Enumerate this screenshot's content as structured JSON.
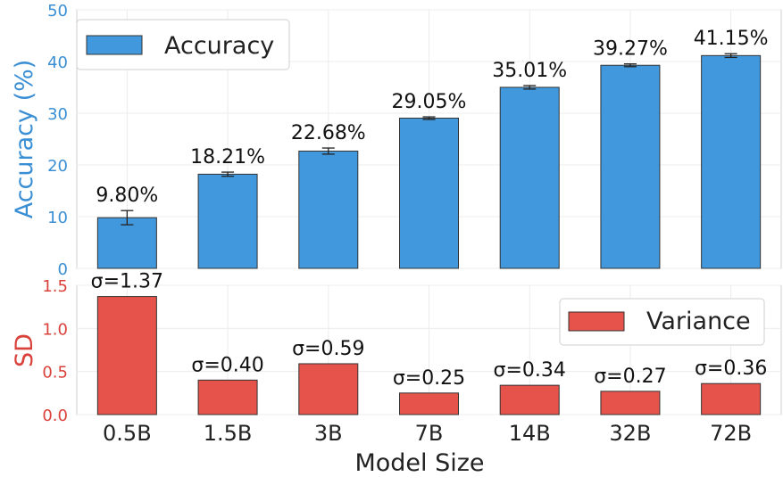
{
  "chart_data": [
    {
      "type": "bar",
      "ylabel": "Accuracy (%)",
      "xlabel": "",
      "ylim": [
        0,
        50
      ],
      "yticks": [
        "0",
        "10",
        "20",
        "30",
        "40",
        "50"
      ],
      "categories": [
        "0.5B",
        "1.5B",
        "3B",
        "7B",
        "14B",
        "32B",
        "72B"
      ],
      "series": [
        {
          "name": "Accuracy",
          "values": [
            9.8,
            18.21,
            22.68,
            29.05,
            35.01,
            39.27,
            41.15
          ],
          "errors": [
            1.37,
            0.4,
            0.59,
            0.25,
            0.34,
            0.27,
            0.36
          ]
        }
      ],
      "data_labels": [
        "9.80%",
        "18.21%",
        "22.68%",
        "29.05%",
        "35.01%",
        "39.27%",
        "41.15%"
      ],
      "legend_position": "top-left",
      "grid": true,
      "bar_color": "#4198dc",
      "label_color": "#3a8fd4"
    },
    {
      "type": "bar",
      "ylabel": "SD",
      "xlabel": "Model Size",
      "ylim": [
        0,
        1.5
      ],
      "yticks": [
        "0.0",
        "0.5",
        "1.0",
        "1.5"
      ],
      "categories": [
        "0.5B",
        "1.5B",
        "3B",
        "7B",
        "14B",
        "32B",
        "72B"
      ],
      "series": [
        {
          "name": "Variance",
          "values": [
            1.37,
            0.4,
            0.59,
            0.25,
            0.34,
            0.27,
            0.36
          ]
        }
      ],
      "data_labels": [
        "σ=1.37",
        "σ=0.40",
        "σ=0.59",
        "σ=0.25",
        "σ=0.34",
        "σ=0.27",
        "σ=0.36"
      ],
      "legend_position": "top-right",
      "grid": true,
      "bar_color": "#e5534b",
      "label_color": "#d9413a"
    }
  ]
}
